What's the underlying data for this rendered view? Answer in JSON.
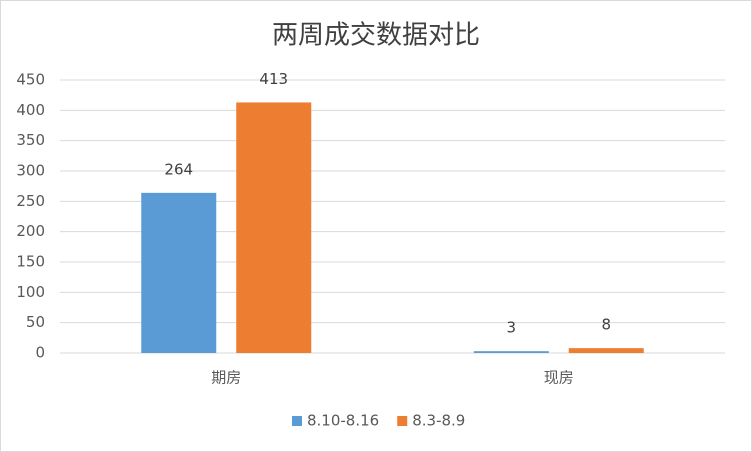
{
  "chart_data": {
    "type": "bar",
    "title": "两周成交数据对比",
    "categories": [
      "期房",
      "现房"
    ],
    "series": [
      {
        "name": "8.10-8.16",
        "color": "#5b9bd5",
        "values": [
          264,
          3
        ]
      },
      {
        "name": "8.3-8.9",
        "color": "#ed7d31",
        "values": [
          413,
          8
        ]
      }
    ],
    "ylim": [
      0,
      450
    ],
    "yticks": [
      0,
      50,
      100,
      150,
      200,
      250,
      300,
      350,
      400,
      450
    ],
    "grid": true,
    "legend": "bottom"
  }
}
